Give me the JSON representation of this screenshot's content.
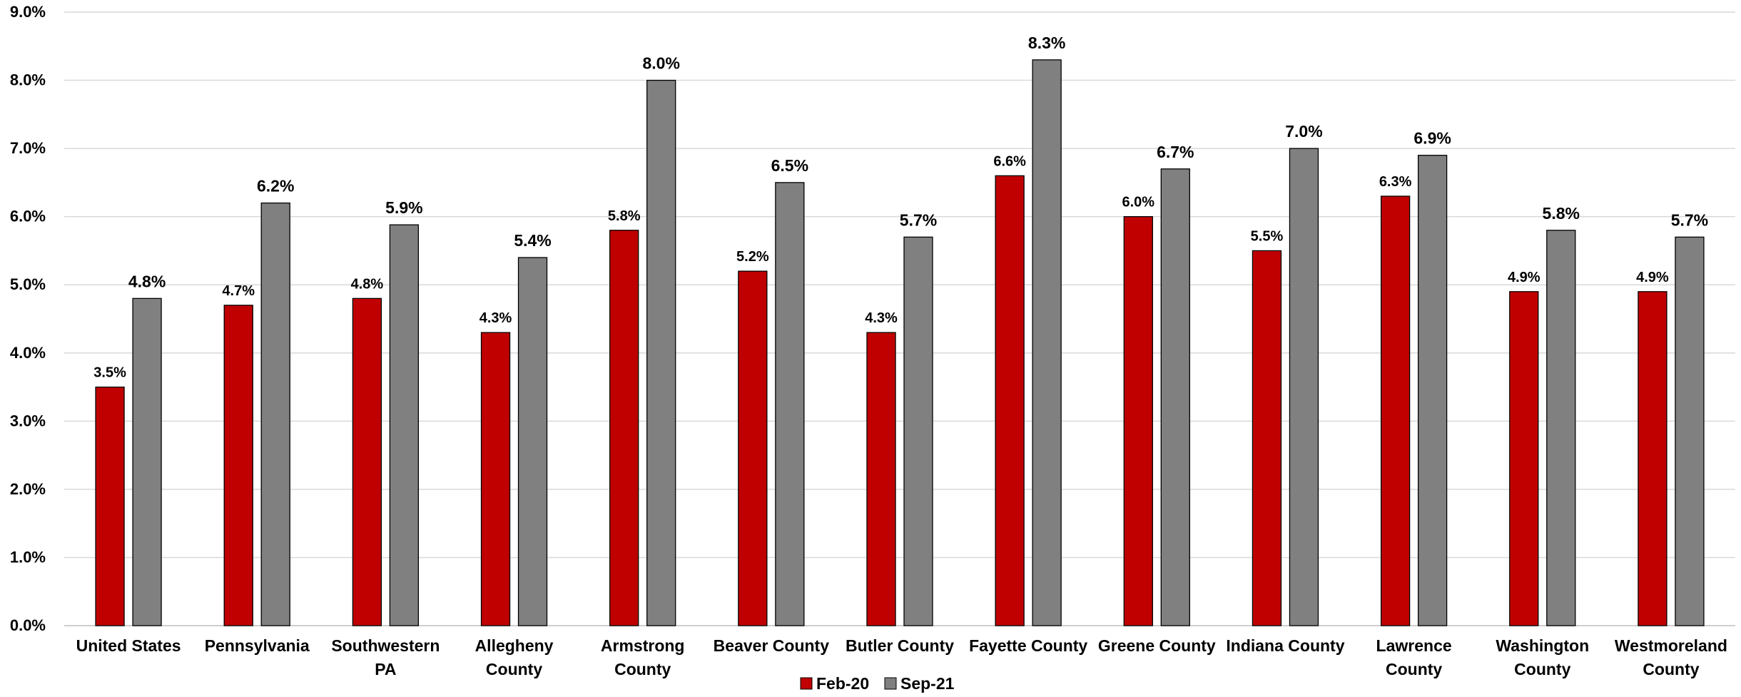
{
  "chart_data": {
    "type": "bar",
    "categories": [
      [
        "United States"
      ],
      [
        "Pennsylvania"
      ],
      [
        "Southwestern",
        "PA"
      ],
      [
        "Allegheny",
        "County"
      ],
      [
        "Armstrong",
        "County"
      ],
      [
        "Beaver County"
      ],
      [
        "Butler County"
      ],
      [
        "Fayette County"
      ],
      [
        "Greene County"
      ],
      [
        "Indiana County"
      ],
      [
        "Lawrence",
        "County"
      ],
      [
        "Washington",
        "County"
      ],
      [
        "Westmoreland",
        "County"
      ]
    ],
    "series": [
      {
        "name": "Feb-20",
        "color": "#c00000",
        "values": [
          3.5,
          4.7,
          4.8,
          4.3,
          5.8,
          5.2,
          4.3,
          6.6,
          6.0,
          5.5,
          6.3,
          4.9,
          4.9
        ],
        "labels": [
          "3.5%",
          "4.7%",
          "4.8%",
          "4.3%",
          "5.8%",
          "5.2%",
          "4.3%",
          "6.6%",
          "6.0%",
          "5.5%",
          "6.3%",
          "4.9%",
          "4.9%"
        ]
      },
      {
        "name": "Sep-21",
        "color": "#808080",
        "values": [
          4.8,
          6.2,
          5.88,
          5.4,
          8.0,
          6.5,
          5.7,
          8.3,
          6.7,
          7.0,
          6.9,
          5.8,
          5.7
        ],
        "labels": [
          "4.8%",
          "6.2%",
          "5.9%",
          "5.4%",
          "8.0%",
          "6.5%",
          "5.7%",
          "8.3%",
          "6.7%",
          "7.0%",
          "6.9%",
          "5.8%",
          "5.7%"
        ]
      }
    ],
    "y_ticks": [
      "0.0%",
      "1.0%",
      "2.0%",
      "3.0%",
      "4.0%",
      "5.0%",
      "6.0%",
      "7.0%",
      "8.0%",
      "9.0%"
    ],
    "ylim": [
      0,
      9
    ],
    "title": "",
    "xlabel": "",
    "ylabel": "",
    "grid": true,
    "legend_position": "bottom-center",
    "gridline_color": "#d9d9d9"
  }
}
